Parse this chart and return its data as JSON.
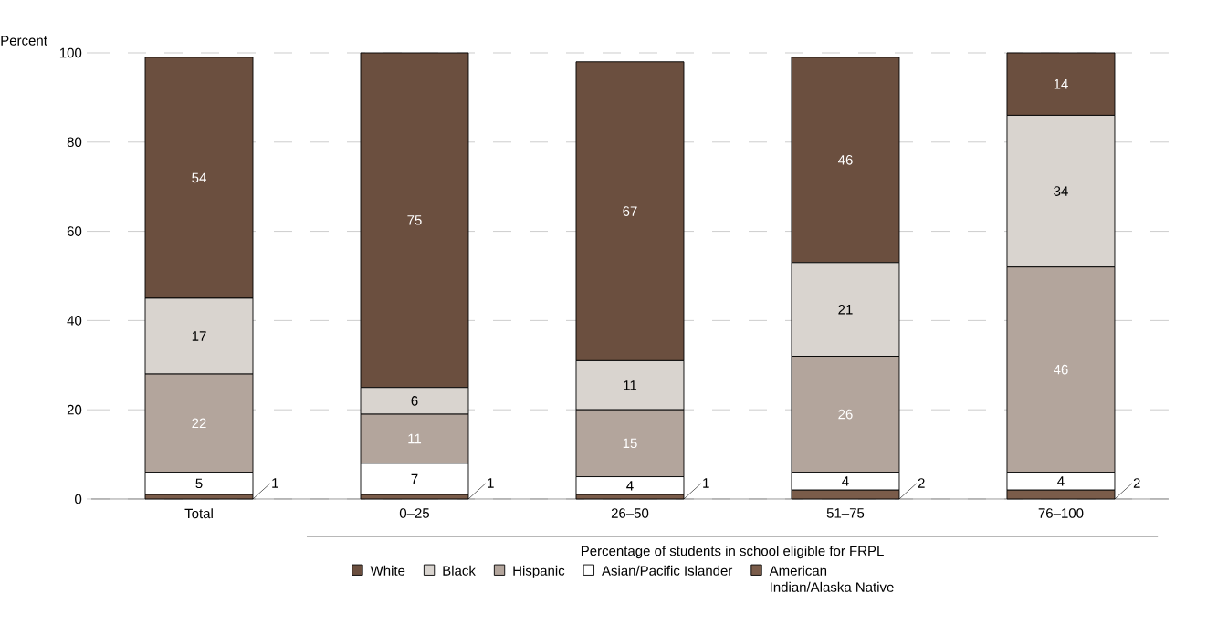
{
  "chart_data": {
    "type": "bar",
    "stacked": true,
    "ylabel": "Percent",
    "xlabel": "Percentage of students in school eligible for FRPL",
    "categories": [
      "Total",
      "0–25",
      "26–50",
      "51–75",
      "76–100"
    ],
    "series": [
      {
        "name": "American Indian/Alaska Native",
        "color": "#7a5c4a",
        "values": [
          1,
          1,
          1,
          2,
          2
        ]
      },
      {
        "name": "Asian/Pacific Islander",
        "color": "#ffffff",
        "values": [
          5,
          7,
          4,
          4,
          4
        ]
      },
      {
        "name": "Hispanic",
        "color": "#b3a59c",
        "values": [
          22,
          11,
          15,
          26,
          46
        ]
      },
      {
        "name": "Black",
        "color": "#d9d4cf",
        "values": [
          17,
          6,
          11,
          21,
          34
        ]
      },
      {
        "name": "White",
        "color": "#6b4f3f",
        "values": [
          54,
          75,
          67,
          46,
          14
        ]
      }
    ],
    "ylim": [
      0,
      100
    ],
    "yticks": [
      0,
      20,
      40,
      60,
      80,
      100
    ],
    "grid": "y",
    "legend": "bottom",
    "data_labels": true
  }
}
